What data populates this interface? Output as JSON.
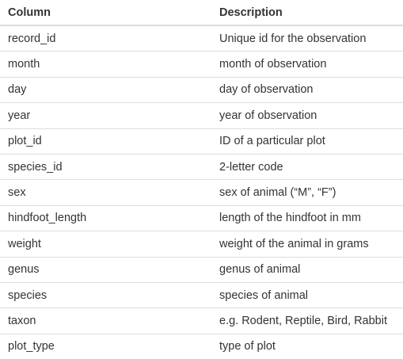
{
  "table": {
    "headers": [
      "Column",
      "Description"
    ],
    "rows": [
      [
        "record_id",
        "Unique id for the observation"
      ],
      [
        "month",
        "month of observation"
      ],
      [
        "day",
        "day of observation"
      ],
      [
        "year",
        "year of observation"
      ],
      [
        "plot_id",
        "ID of a particular plot"
      ],
      [
        "species_id",
        "2-letter code"
      ],
      [
        "sex",
        "sex of animal (“M”, “F”)"
      ],
      [
        "hindfoot_length",
        "length of the hindfoot in mm"
      ],
      [
        "weight",
        "weight of the animal in grams"
      ],
      [
        "genus",
        "genus of animal"
      ],
      [
        "species",
        "species of animal"
      ],
      [
        "taxon",
        "e.g. Rodent, Reptile, Bird, Rabbit"
      ],
      [
        "plot_type",
        "type of plot"
      ]
    ]
  },
  "colors": {
    "text": "#333333",
    "rule": "#dddddd",
    "background": "#ffffff"
  }
}
